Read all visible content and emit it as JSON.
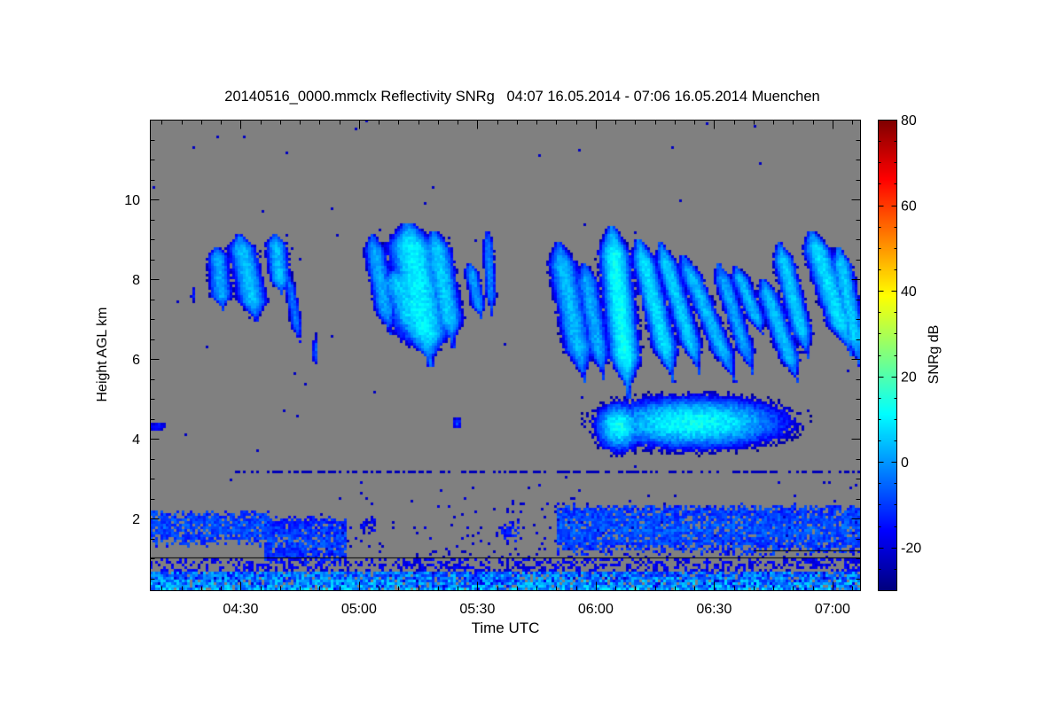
{
  "chart_data": {
    "type": "heatmap",
    "title": "20140516_0000.mmclx Reflectivity SNRg   04:07 16.05.2014 - 07:06 16.05.2014 Muenchen",
    "xlabel": "Time UTC",
    "ylabel": "Height AGL km",
    "colorbar_label": "SNRg dB",
    "colormap": "jet",
    "background_color": "#808080",
    "xlim_minutes_utc": [
      247,
      427
    ],
    "ylim_km": [
      0.2,
      12.0
    ],
    "clim_db": [
      -30,
      80
    ],
    "x_ticks": [
      {
        "minutes": 270,
        "label": "04:30"
      },
      {
        "minutes": 300,
        "label": "05:00"
      },
      {
        "minutes": 330,
        "label": "05:30"
      },
      {
        "minutes": 360,
        "label": "06:00"
      },
      {
        "minutes": 390,
        "label": "06:30"
      },
      {
        "minutes": 420,
        "label": "07:00"
      }
    ],
    "x_minor_step_minutes": 5,
    "y_ticks": [
      {
        "value": 2,
        "label": "2"
      },
      {
        "value": 4,
        "label": "4"
      },
      {
        "value": 6,
        "label": "6"
      },
      {
        "value": 8,
        "label": "8"
      },
      {
        "value": 10,
        "label": "10"
      }
    ],
    "y_minor_step_km": 0.5,
    "colorbar_ticks": [
      {
        "value": -20,
        "label": "-20"
      },
      {
        "value": 0,
        "label": "0"
      },
      {
        "value": 20,
        "label": "20"
      },
      {
        "value": 40,
        "label": "40"
      },
      {
        "value": 60,
        "label": "60"
      },
      {
        "value": 80,
        "label": "80"
      }
    ],
    "colorbar_minor_step_db": 5,
    "reference_lines_km": [
      {
        "height": 1.02,
        "t_start": 247,
        "t_end": 427
      },
      {
        "height": 1.2,
        "t_start": 400,
        "t_end": 427
      }
    ],
    "fall_streaks": [
      {
        "t_top": 264.0,
        "h_top": 8.8,
        "t_bottom": 265.5,
        "h_bottom": 7.2,
        "width_min": 3,
        "peak_db": 2
      },
      {
        "t_top": 269.7,
        "h_top": 9.1,
        "t_bottom": 274.2,
        "h_bottom": 6.9,
        "width_min": 4,
        "peak_db": 5
      },
      {
        "t_top": 278.7,
        "h_top": 9.1,
        "t_bottom": 280.5,
        "h_bottom": 7.6,
        "width_min": 3,
        "peak_db": 4
      },
      {
        "t_top": 282.0,
        "h_top": 8.1,
        "t_bottom": 285.0,
        "h_bottom": 6.4,
        "width_min": 1.5,
        "peak_db": -4
      },
      {
        "t_top": 303.4,
        "h_top": 9.1,
        "t_bottom": 307.9,
        "h_bottom": 6.6,
        "width_min": 3,
        "peak_db": 2
      },
      {
        "t_top": 312.4,
        "h_top": 9.4,
        "t_bottom": 318.3,
        "h_bottom": 5.8,
        "width_min": 7,
        "peak_db": 10
      },
      {
        "t_top": 319.0,
        "h_top": 9.2,
        "t_bottom": 324.0,
        "h_bottom": 6.3,
        "width_min": 4,
        "peak_db": 6
      },
      {
        "t_top": 309.0,
        "h_top": 8.2,
        "t_bottom": 316.0,
        "h_bottom": 6.5,
        "width_min": 6,
        "peak_db": 6
      },
      {
        "t_top": 328.0,
        "h_top": 8.4,
        "t_bottom": 331.0,
        "h_bottom": 7.0,
        "width_min": 2,
        "peak_db": 0
      },
      {
        "t_top": 332.6,
        "h_top": 9.2,
        "t_bottom": 333.7,
        "h_bottom": 7.1,
        "width_min": 1.5,
        "peak_db": -2
      },
      {
        "t_top": 350.6,
        "h_top": 8.9,
        "t_bottom": 357.3,
        "h_bottom": 5.4,
        "width_min": 4,
        "peak_db": 4
      },
      {
        "t_top": 357.0,
        "h_top": 8.4,
        "t_bottom": 362.0,
        "h_bottom": 5.5,
        "width_min": 3,
        "peak_db": 2
      },
      {
        "t_top": 364.0,
        "h_top": 9.3,
        "t_bottom": 368.5,
        "h_bottom": 5.0,
        "width_min": 4.5,
        "peak_db": 12
      },
      {
        "t_top": 370.8,
        "h_top": 9.0,
        "t_bottom": 379.8,
        "h_bottom": 5.4,
        "width_min": 3.5,
        "peak_db": 8
      },
      {
        "t_top": 376.4,
        "h_top": 8.9,
        "t_bottom": 386.5,
        "h_bottom": 5.6,
        "width_min": 3,
        "peak_db": 6
      },
      {
        "t_top": 382.0,
        "h_top": 8.6,
        "t_bottom": 395.5,
        "h_bottom": 5.4,
        "width_min": 3,
        "peak_db": 4
      },
      {
        "t_top": 391.0,
        "h_top": 8.4,
        "t_bottom": 400.0,
        "h_bottom": 5.6,
        "width_min": 2.5,
        "peak_db": 2
      },
      {
        "t_top": 395.5,
        "h_top": 8.3,
        "t_bottom": 402.3,
        "h_bottom": 6.6,
        "width_min": 2.5,
        "peak_db": 4
      },
      {
        "t_top": 402.3,
        "h_top": 8.0,
        "t_bottom": 411.3,
        "h_bottom": 5.4,
        "width_min": 3,
        "peak_db": 4
      },
      {
        "t_top": 406.5,
        "h_top": 8.9,
        "t_bottom": 414.0,
        "h_bottom": 6.0,
        "width_min": 3,
        "peak_db": 6
      },
      {
        "t_top": 414.6,
        "h_top": 9.2,
        "t_bottom": 424.8,
        "h_bottom": 6.1,
        "width_min": 4,
        "peak_db": 8
      },
      {
        "t_top": 421.5,
        "h_top": 8.8,
        "t_bottom": 427.0,
        "h_bottom": 5.8,
        "width_min": 3,
        "peak_db": 6
      }
    ],
    "blobs": [
      {
        "t": 314,
        "h": 7.3,
        "dt": 7,
        "dh": 1.0,
        "peak_db": 10
      },
      {
        "t": 385,
        "h": 4.4,
        "dt": 27,
        "dh": 0.75,
        "peak_db": 12
      },
      {
        "t": 366,
        "h": 4.3,
        "dt": 7,
        "dh": 0.7,
        "peak_db": 12
      },
      {
        "t": 325,
        "h": 4.4,
        "dt": 1.2,
        "dh": 0.15,
        "peak_db": -10
      },
      {
        "t": 249,
        "h": 4.3,
        "dt": 2,
        "dh": 0.12,
        "peak_db": -12
      },
      {
        "t": 289,
        "h": 6.2,
        "dt": 0.8,
        "dh": 0.4,
        "peak_db": -6
      },
      {
        "t": 258,
        "h": 7.6,
        "dt": 0.6,
        "dh": 0.2,
        "peak_db": -14
      }
    ],
    "low_layers": [
      {
        "t_start": 247,
        "t_end": 277,
        "h_bottom": 1.4,
        "h_top": 2.15,
        "peak_db": -5
      },
      {
        "t_start": 276,
        "t_end": 297,
        "h_bottom": 0.9,
        "h_top": 2.0,
        "peak_db": -6
      },
      {
        "t_start": 300,
        "t_end": 304,
        "h_bottom": 1.75,
        "h_top": 1.95,
        "peak_db": -15
      },
      {
        "t_start": 336,
        "t_end": 341,
        "h_bottom": 1.55,
        "h_top": 1.85,
        "peak_db": -10
      },
      {
        "t_start": 350,
        "t_end": 427,
        "h_bottom": 1.2,
        "h_top": 2.3,
        "peak_db": -4
      }
    ],
    "ground_clutter_km": [
      0.2,
      0.65
    ]
  }
}
